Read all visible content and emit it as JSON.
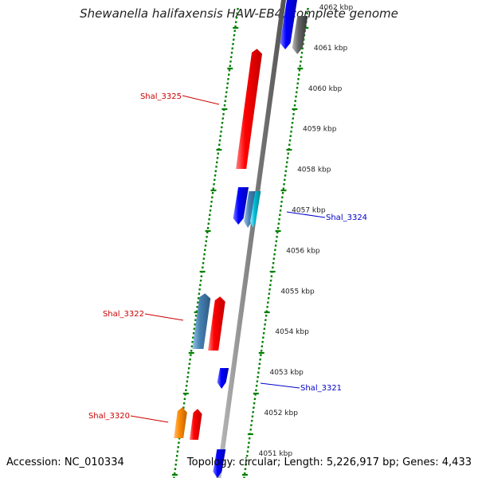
{
  "title": "Shewanella halifaxensis HAW-EB4, complete genome",
  "footer": {
    "accession": "Accession: NC_010334",
    "summary": "Topology: circular; Length: 5,226,917 bp; Genes: 4,433"
  },
  "colors": {
    "forward": "#ff0000",
    "reverse": "#0000ff",
    "steel": "#4682b4",
    "cyan": "#00bcd4",
    "gray": "#666666",
    "orange": "#ff8c00",
    "tick": "#008000",
    "backbone": "#808080"
  },
  "ruler": {
    "unit": "kbp",
    "labels": [
      "4062 kbp",
      "4061 kbp",
      "4060 kbp",
      "4059 kbp",
      "4058 kbp",
      "4057 kbp",
      "4056 kbp",
      "4055 kbp",
      "4054 kbp",
      "4053 kbp",
      "4052 kbp",
      "4051 kbp"
    ]
  },
  "gene_labels": [
    {
      "name": "Shal_3325",
      "strand": "forward"
    },
    {
      "name": "Shal_3324",
      "strand": "reverse"
    },
    {
      "name": "Shal_3322",
      "strand": "forward"
    },
    {
      "name": "Shal_3321",
      "strand": "reverse"
    },
    {
      "name": "Shal_3320",
      "strand": "forward"
    }
  ],
  "features": [
    {
      "type": "gene",
      "color": "reverse",
      "strand": "reverse"
    },
    {
      "type": "gene",
      "color": "gray",
      "strand": "reverse"
    },
    {
      "type": "gene",
      "color": "forward",
      "strand": "forward"
    },
    {
      "type": "gene",
      "color": "reverse",
      "strand": "reverse"
    },
    {
      "type": "gene",
      "color": "steel",
      "strand": "reverse"
    },
    {
      "type": "gene",
      "color": "cyan",
      "strand": "reverse"
    },
    {
      "type": "gene",
      "color": "steel",
      "strand": "forward"
    },
    {
      "type": "gene",
      "color": "forward",
      "strand": "forward"
    },
    {
      "type": "gene",
      "color": "reverse",
      "strand": "reverse"
    },
    {
      "type": "gene",
      "color": "orange",
      "strand": "forward"
    },
    {
      "type": "gene",
      "color": "forward",
      "strand": "forward"
    },
    {
      "type": "gene",
      "color": "reverse",
      "strand": "reverse"
    }
  ]
}
